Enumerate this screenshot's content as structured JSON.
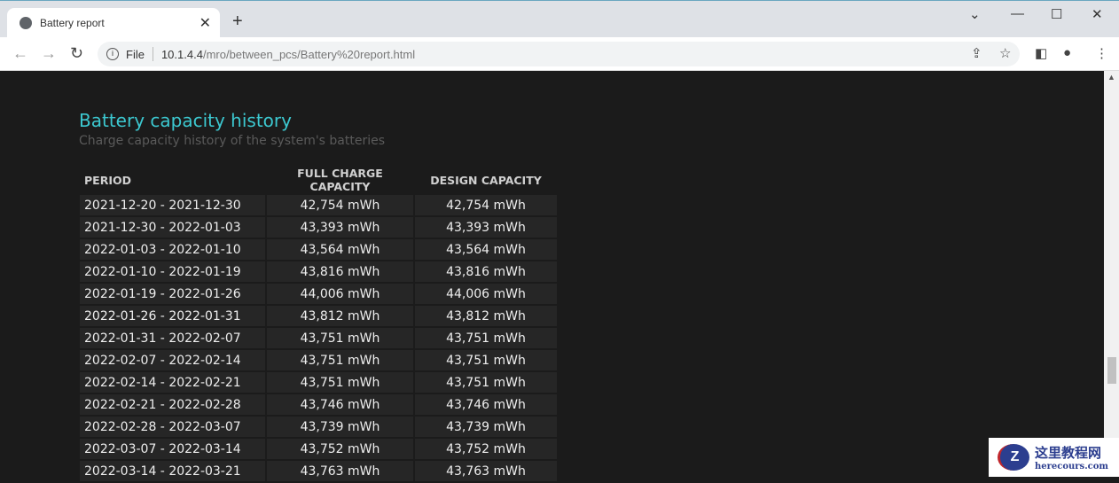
{
  "browser": {
    "tab_title": "Battery report",
    "url_scheme": "File",
    "url_host": "10.1.4.4",
    "url_path": "/mro/between_pcs/Battery%20report.html"
  },
  "page": {
    "title": "Battery capacity history",
    "subtitle": "Charge capacity history of the system's batteries"
  },
  "table": {
    "headers": [
      "PERIOD",
      "FULL CHARGE CAPACITY",
      "DESIGN CAPACITY"
    ],
    "rows": [
      [
        "2021-12-20 - 2021-12-30",
        "42,754 mWh",
        "42,754 mWh"
      ],
      [
        "2021-12-30 - 2022-01-03",
        "43,393 mWh",
        "43,393 mWh"
      ],
      [
        "2022-01-03 - 2022-01-10",
        "43,564 mWh",
        "43,564 mWh"
      ],
      [
        "2022-01-10 - 2022-01-19",
        "43,816 mWh",
        "43,816 mWh"
      ],
      [
        "2022-01-19 - 2022-01-26",
        "44,006 mWh",
        "44,006 mWh"
      ],
      [
        "2022-01-26 - 2022-01-31",
        "43,812 mWh",
        "43,812 mWh"
      ],
      [
        "2022-01-31 - 2022-02-07",
        "43,751 mWh",
        "43,751 mWh"
      ],
      [
        "2022-02-07 - 2022-02-14",
        "43,751 mWh",
        "43,751 mWh"
      ],
      [
        "2022-02-14 - 2022-02-21",
        "43,751 mWh",
        "43,751 mWh"
      ],
      [
        "2022-02-21 - 2022-02-28",
        "43,746 mWh",
        "43,746 mWh"
      ],
      [
        "2022-02-28 - 2022-03-07",
        "43,739 mWh",
        "43,739 mWh"
      ],
      [
        "2022-03-07 - 2022-03-14",
        "43,752 mWh",
        "43,752 mWh"
      ],
      [
        "2022-03-14 - 2022-03-21",
        "43,763 mWh",
        "43,763 mWh"
      ]
    ]
  },
  "watermark": {
    "text_cn": "这里教程网",
    "text_en": "herecours.com"
  },
  "colors": {
    "title": "#3cc8d0",
    "background": "#1b1b1b",
    "cell": "#262626"
  }
}
